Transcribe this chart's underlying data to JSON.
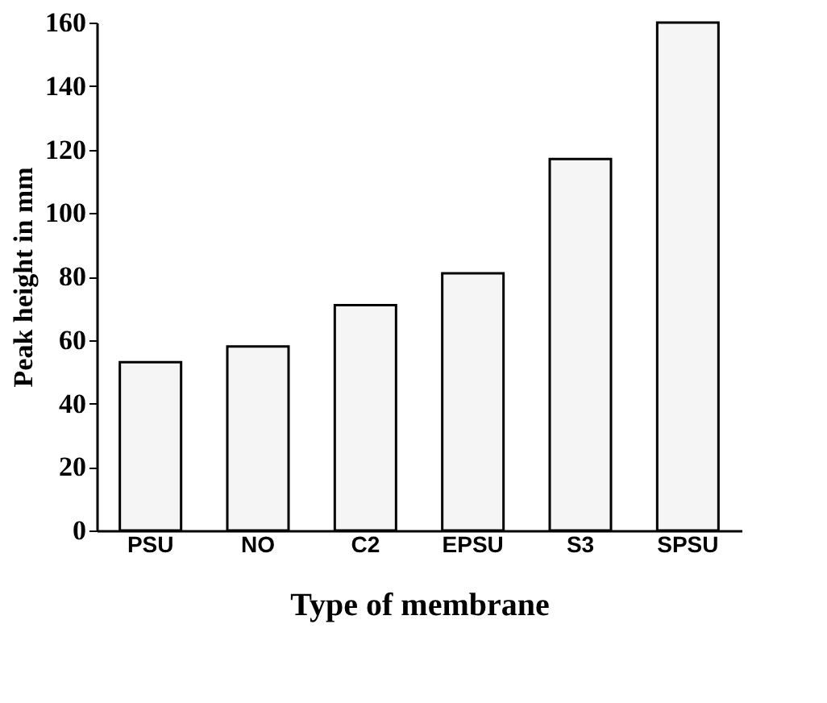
{
  "chart_data": {
    "type": "bar",
    "xlabel": "Type of membrane",
    "ylabel": "Peak height in mm",
    "categories": [
      "PSU",
      "NO",
      "C2",
      "EPSU",
      "S3",
      "SPSU"
    ],
    "values": [
      53,
      58,
      71,
      81,
      117,
      160
    ],
    "color": "#f5f5f5",
    "ylim": [
      0,
      160
    ],
    "yticks": [
      0,
      20,
      40,
      60,
      80,
      100,
      120,
      140,
      160
    ],
    "grid": false
  }
}
